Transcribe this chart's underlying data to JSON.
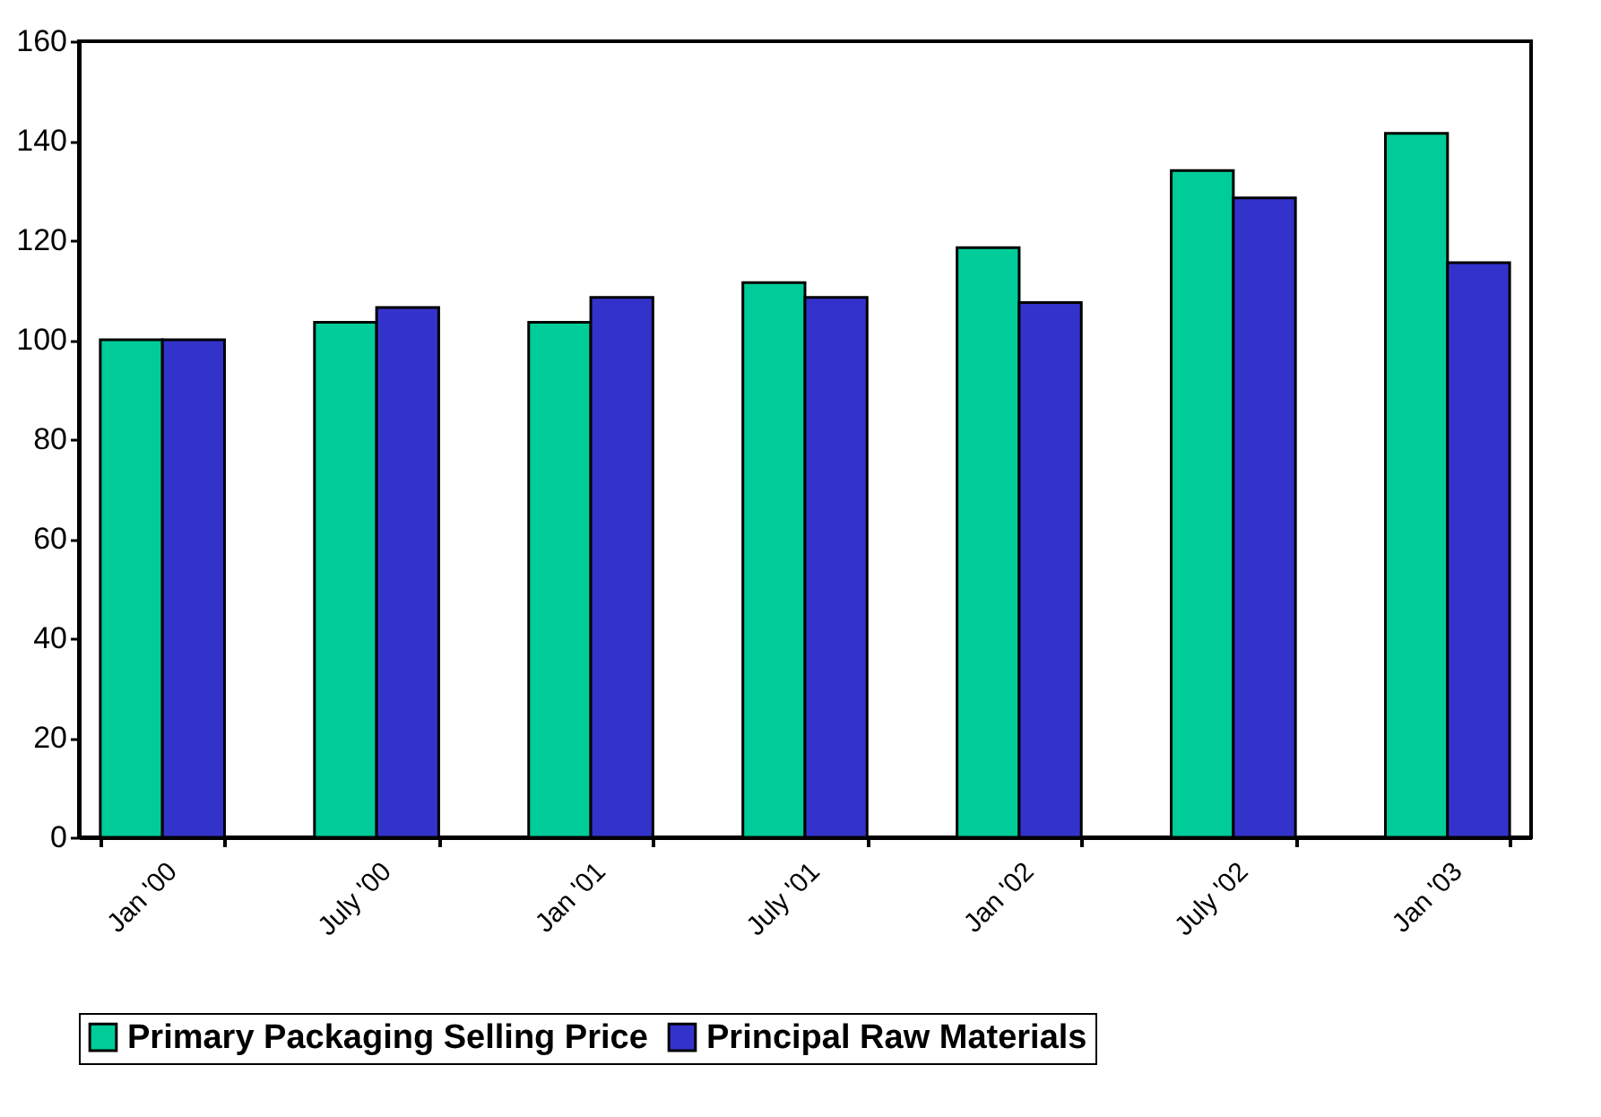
{
  "chart_data": {
    "type": "bar",
    "categories": [
      "Jan '00",
      "July '00",
      "Jan '01",
      "July '01",
      "Jan '02",
      "July '02",
      "Jan '03"
    ],
    "series": [
      {
        "name": "Primary Packaging Selling Price",
        "color": "#00cc99",
        "values": [
          100,
          103.5,
          103.5,
          111.5,
          118.5,
          134,
          141.5
        ]
      },
      {
        "name": "Principal Raw Materials",
        "color": "#3333cc",
        "values": [
          100,
          106.5,
          108.5,
          108.5,
          107.5,
          128.5,
          115.5
        ]
      }
    ],
    "ylim": [
      0,
      160
    ],
    "yticks": [
      0,
      20,
      40,
      60,
      80,
      100,
      120,
      140,
      160
    ],
    "grid": false,
    "legend": "bottom"
  }
}
